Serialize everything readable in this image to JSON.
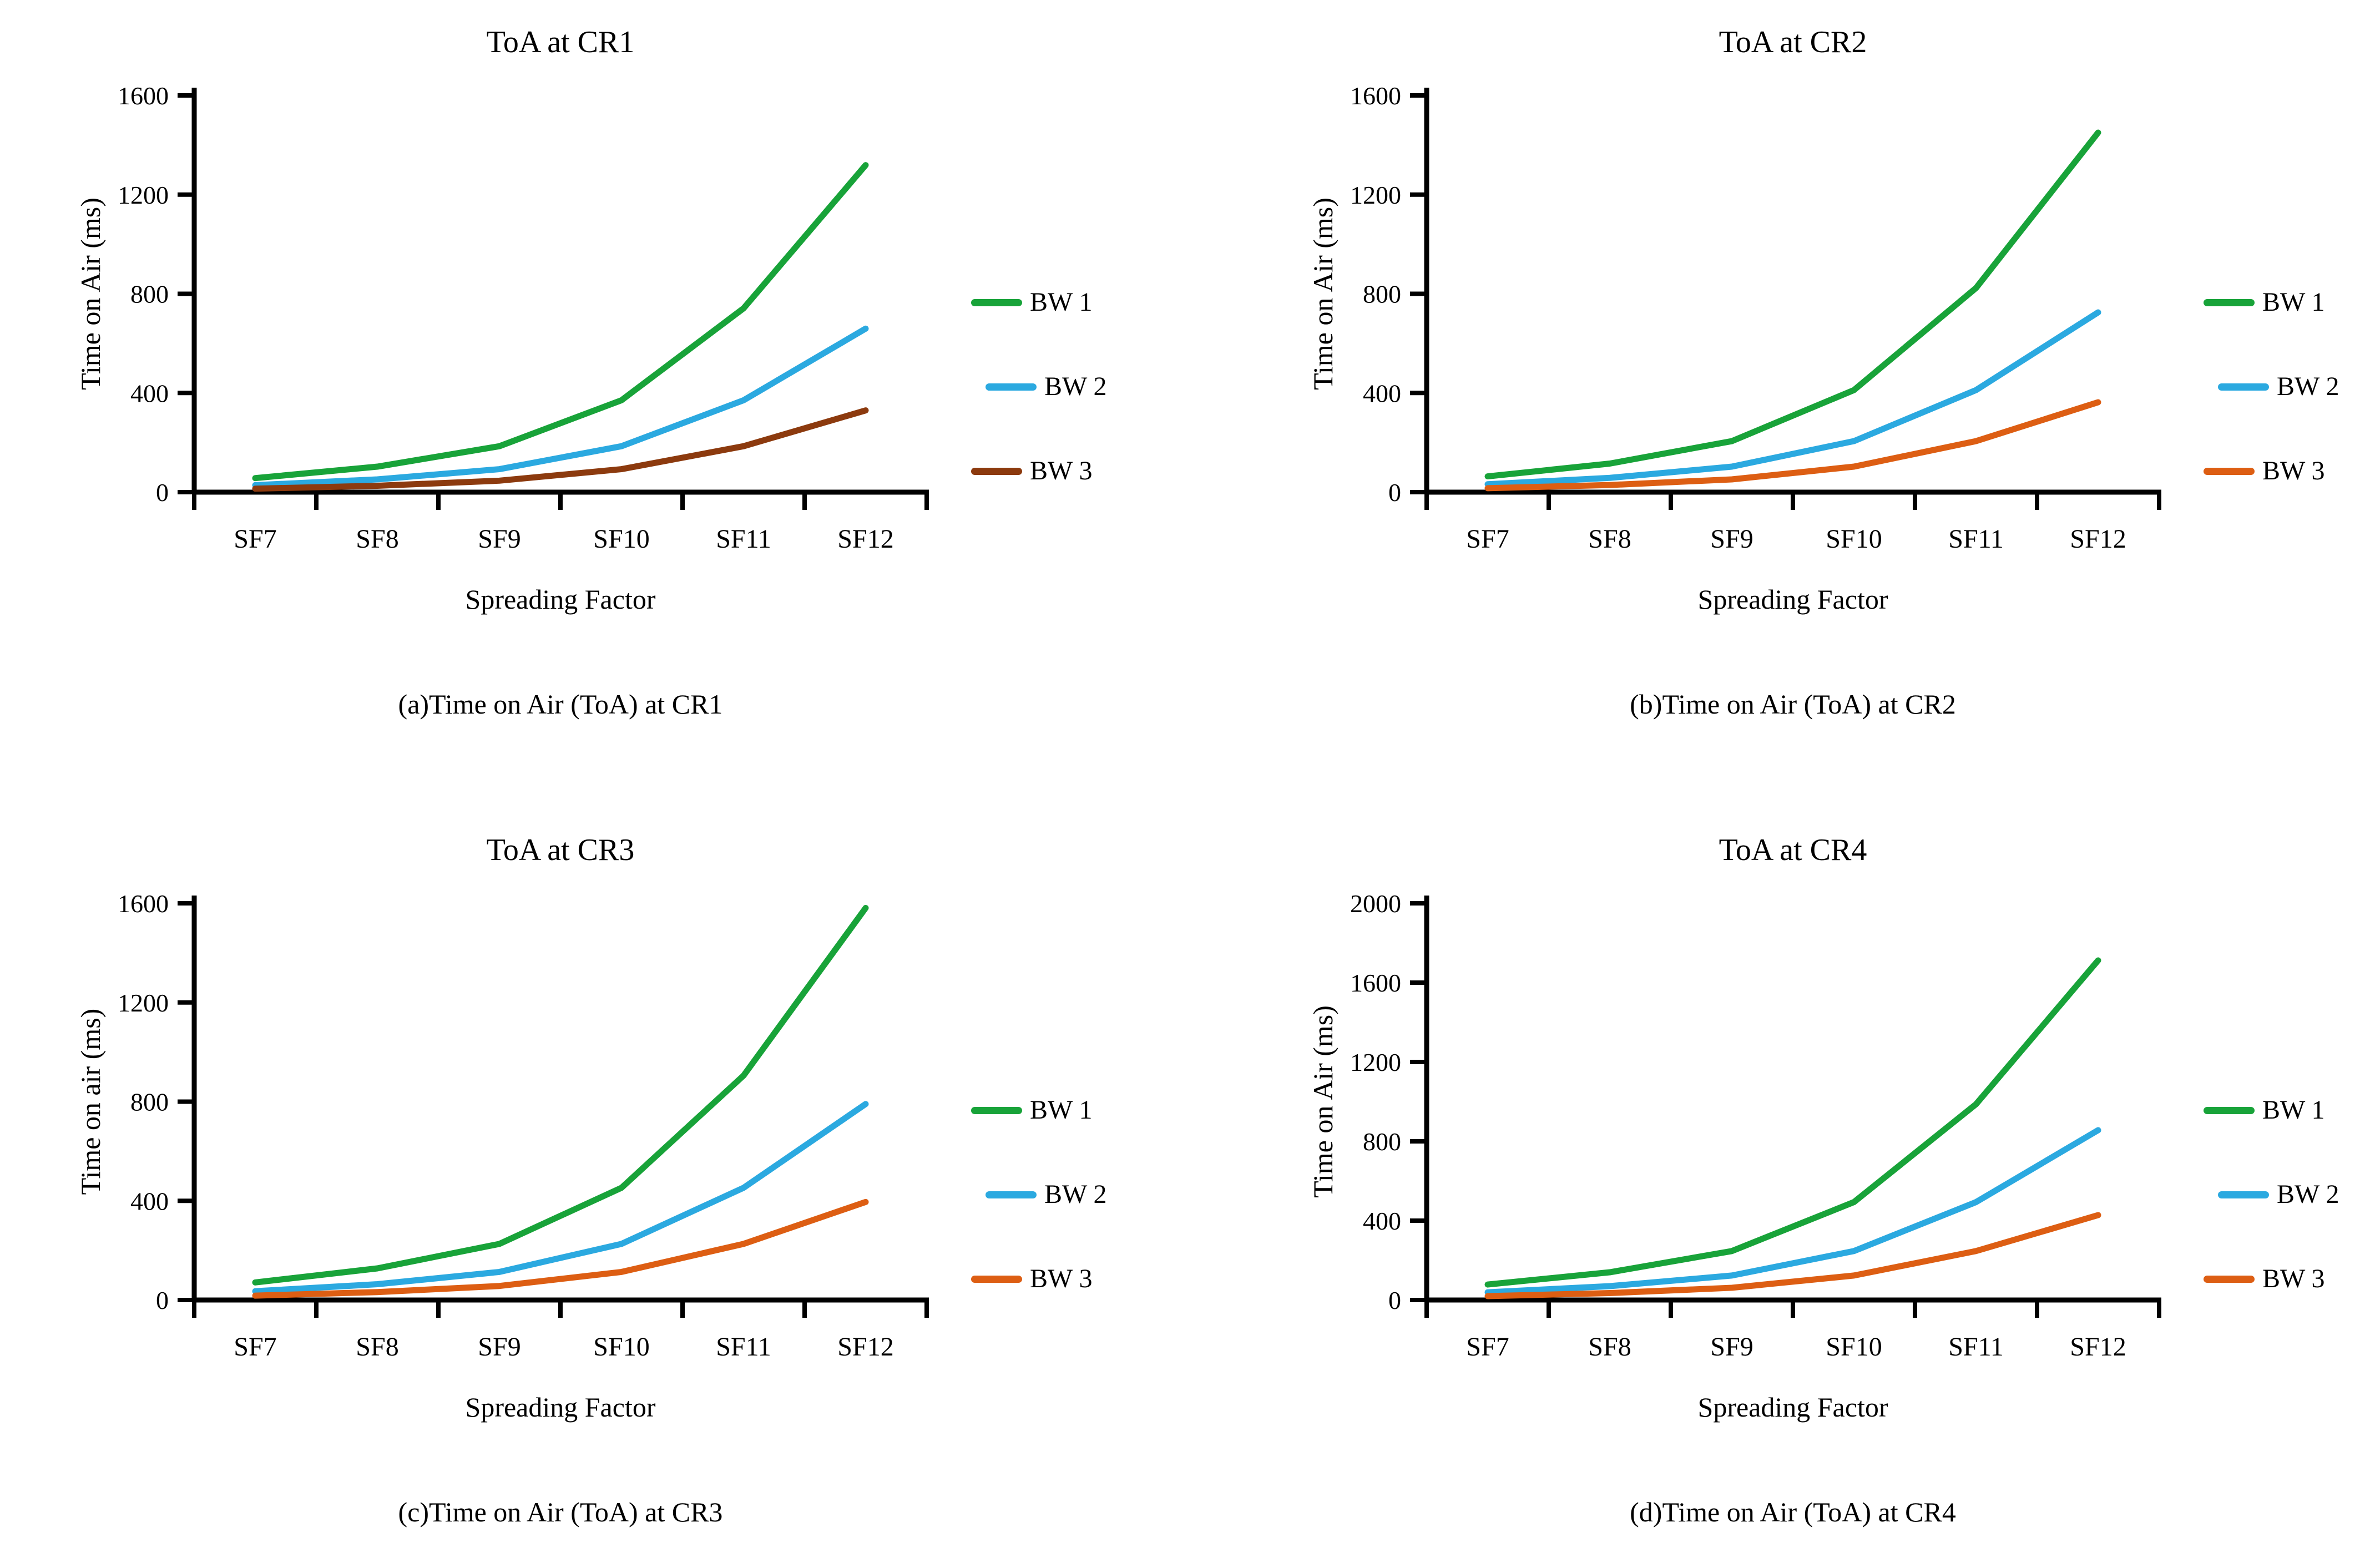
{
  "chart_data": [
    {
      "type": "line",
      "panel": "a",
      "title": "ToA at CR1",
      "caption": "(a)Time on Air (ToA) at CR1",
      "xlabel": "Spreading Factor",
      "ylabel": "Time on Air (ms)",
      "categories": [
        "SF7",
        "SF8",
        "SF9",
        "SF10",
        "SF11",
        "SF12"
      ],
      "ylim": [
        0,
        1600
      ],
      "yticks": [
        0,
        400,
        800,
        1200,
        1600
      ],
      "grid": false,
      "legend_position": "right",
      "series": [
        {
          "name": "BW 1",
          "color": "#18A339",
          "values": [
            56.6,
            102.9,
            185.3,
            370.7,
            741.4,
            1318.9
          ]
        },
        {
          "name": "BW 2",
          "color": "#2BA9E0",
          "values": [
            28.3,
            51.5,
            92.7,
            185.3,
            370.7,
            659.5
          ]
        },
        {
          "name": "BW 3",
          "color": "#8C3A0E",
          "values": [
            14.1,
            25.7,
            46.3,
            92.7,
            185.3,
            329.7
          ]
        }
      ]
    },
    {
      "type": "line",
      "panel": "b",
      "title": "ToA at CR2",
      "caption": "(b)Time on Air (ToA) at CR2",
      "xlabel": "Spreading Factor",
      "ylabel": "Time on Air (ms)",
      "categories": [
        "SF7",
        "SF8",
        "SF9",
        "SF10",
        "SF11",
        "SF12"
      ],
      "ylim": [
        0,
        1600
      ],
      "yticks": [
        0,
        400,
        800,
        1200,
        1600
      ],
      "grid": false,
      "legend_position": "right",
      "series": [
        {
          "name": "BW 1",
          "color": "#18A339",
          "values": [
            63.7,
            115.2,
            205.8,
            411.6,
            823.3,
            1450.0
          ]
        },
        {
          "name": "BW 2",
          "color": "#2BA9E0",
          "values": [
            31.9,
            57.6,
            102.9,
            205.8,
            411.6,
            725.0
          ]
        },
        {
          "name": "BW 3",
          "color": "#DD5E13",
          "values": [
            15.9,
            28.8,
            51.5,
            102.9,
            205.8,
            362.5
          ]
        }
      ]
    },
    {
      "type": "line",
      "panel": "c",
      "title": "ToA at CR3",
      "caption": "(c)Time on Air (ToA) at CR3",
      "xlabel": "Spreading Factor",
      "ylabel": "Time on air (ms)",
      "categories": [
        "SF7",
        "SF8",
        "SF9",
        "SF10",
        "SF11",
        "SF12"
      ],
      "ylim": [
        0,
        1600
      ],
      "yticks": [
        0,
        400,
        800,
        1200,
        1600
      ],
      "grid": false,
      "legend_position": "right",
      "series": [
        {
          "name": "BW 1",
          "color": "#18A339",
          "values": [
            70.9,
            127.5,
            226.3,
            452.6,
            905.2,
            1581.1
          ]
        },
        {
          "name": "BW 2",
          "color": "#2BA9E0",
          "values": [
            35.5,
            63.7,
            113.2,
            226.3,
            452.6,
            790.5
          ]
        },
        {
          "name": "BW 3",
          "color": "#DD5E13",
          "values": [
            17.7,
            31.9,
            56.6,
            113.2,
            226.3,
            395.3
          ]
        }
      ]
    },
    {
      "type": "line",
      "panel": "d",
      "title": "ToA at CR4",
      "caption": "(d)Time on Air (ToA) at CR4",
      "xlabel": "Spreading Factor",
      "ylabel": "Time on Air (ms)",
      "categories": [
        "SF7",
        "SF8",
        "SF9",
        "SF10",
        "SF11",
        "SF12"
      ],
      "ylim": [
        0,
        2000
      ],
      "yticks": [
        0,
        400,
        800,
        1200,
        1600,
        2000
      ],
      "grid": false,
      "legend_position": "right",
      "series": [
        {
          "name": "BW 1",
          "color": "#18A339",
          "values": [
            78.1,
            139.8,
            246.8,
            493.6,
            987.1,
            1712.1
          ]
        },
        {
          "name": "BW 2",
          "color": "#2BA9E0",
          "values": [
            39.0,
            69.9,
            123.4,
            246.8,
            493.6,
            856.1
          ]
        },
        {
          "name": "BW 3",
          "color": "#DD5E13",
          "values": [
            19.5,
            35.0,
            61.7,
            123.4,
            246.8,
            428.0
          ]
        }
      ]
    }
  ]
}
